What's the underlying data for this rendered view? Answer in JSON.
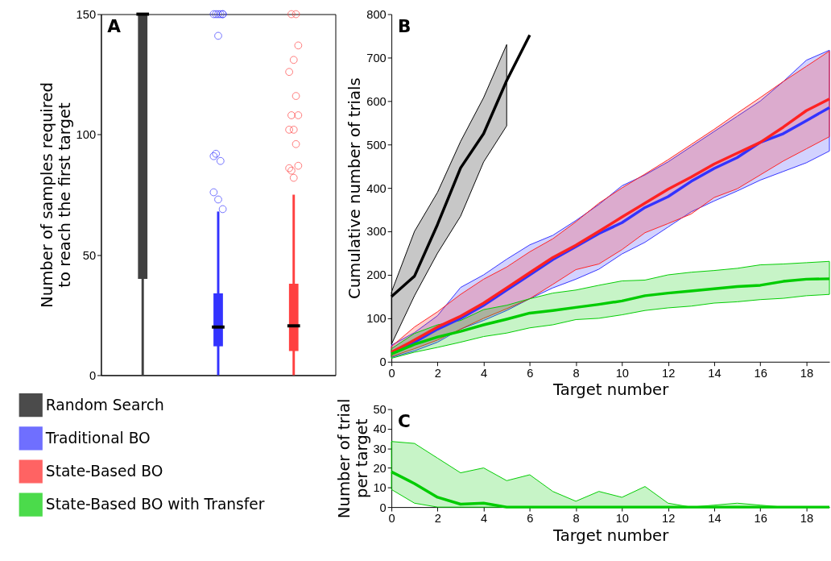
{
  "chart_data": [
    {
      "type": "box",
      "categories": [
        null,
        null,
        null
      ],
      "colors": [
        "#404040",
        "#3333ff",
        "#ff4040"
      ],
      "ylabel": "Number of samples required\nto reach the first target",
      "ylim": [
        0,
        150
      ],
      "yticks": [
        0,
        50,
        100,
        150
      ],
      "annotations": [
        "A"
      ],
      "boxes": [
        {
          "low": 0,
          "q1": 40,
          "median": 150,
          "q3": 150,
          "high": 150
        },
        {
          "low": 0,
          "q1": 12,
          "median": 20,
          "q3": 34,
          "high": 68,
          "outliers": [
            76,
            73,
            69,
            92,
            89,
            91,
            141,
            150,
            150,
            150,
            150,
            150,
            150
          ]
        },
        {
          "low": 0,
          "q1": 10,
          "median": 20.5,
          "q3": 38,
          "high": 75,
          "outliers": [
            86,
            82,
            87,
            85,
            96,
            102,
            102,
            108,
            108,
            116,
            126,
            131,
            137,
            150,
            150
          ]
        }
      ]
    },
    {
      "type": "line",
      "x": [
        0,
        1,
        2,
        3,
        4,
        5,
        6,
        7,
        8,
        9,
        10,
        11,
        12,
        13,
        14,
        15,
        16,
        17,
        18,
        19
      ],
      "xlim": [
        0,
        19
      ],
      "xticks": [
        0,
        2,
        4,
        6,
        8,
        10,
        12,
        14,
        16,
        18
      ],
      "ylim": [
        0,
        800
      ],
      "yticks": [
        0,
        100,
        200,
        300,
        400,
        500,
        600,
        700,
        800
      ],
      "xlabel": "Target number",
      "ylabel": "Cumulative number of trials",
      "legend": "bottom left",
      "annotations": [
        "B"
      ],
      "series": [
        {
          "name": "Random Search",
          "color": "#000000",
          "x": [
            0,
            1,
            2,
            3,
            4,
            5,
            6
          ],
          "values": [
            150,
            197,
            316,
            446,
            525,
            647,
            752
          ],
          "lower": [
            40,
            152,
            250,
            335,
            460,
            543,
            null
          ],
          "upper": [
            160,
            300,
            390,
            507,
            608,
            730,
            null
          ]
        },
        {
          "name": "Traditional BO",
          "color": "#3333ff",
          "values": [
            20,
            45,
            75,
            100,
            130,
            165,
            200,
            235,
            265,
            295,
            320,
            355,
            380,
            415,
            445,
            470,
            505,
            525,
            555,
            585
          ],
          "lower": [
            10,
            25,
            45,
            75,
            95,
            118,
            145,
            170,
            190,
            213,
            248,
            275,
            310,
            345,
            370,
            393,
            418,
            438,
            458,
            485
          ],
          "upper": [
            38,
            67,
            106,
            171,
            200,
            236,
            269,
            291,
            325,
            362,
            405,
            430,
            460,
            495,
            530,
            565,
            600,
            645,
            694,
            717
          ]
        },
        {
          "name": "State-Based BO",
          "color": "#ff2222",
          "values": [
            22,
            50,
            80,
            105,
            135,
            170,
            205,
            240,
            268,
            300,
            333,
            365,
            397,
            425,
            455,
            480,
            505,
            540,
            578,
            605
          ],
          "lower": [
            12,
            30,
            50,
            75,
            100,
            122,
            145,
            178,
            212,
            225,
            258,
            297,
            318,
            340,
            378,
            398,
            430,
            462,
            490,
            518
          ],
          "upper": [
            35,
            80,
            115,
            155,
            190,
            218,
            253,
            283,
            322,
            365,
            400,
            432,
            465,
            500,
            535,
            572,
            608,
            645,
            680,
            715
          ]
        },
        {
          "name": "State-Based BO with Transfer",
          "color": "#00cc00",
          "values": [
            18,
            40,
            57,
            70,
            85,
            98,
            112,
            118,
            125,
            132,
            140,
            152,
            158,
            163,
            168,
            173,
            176,
            185,
            190,
            191
          ],
          "lower": [
            8,
            22,
            33,
            45,
            58,
            66,
            78,
            85,
            97,
            100,
            108,
            118,
            124,
            128,
            135,
            138,
            143,
            146,
            152,
            155
          ],
          "upper": [
            30,
            65,
            85,
            95,
            120,
            130,
            145,
            158,
            165,
            176,
            186,
            188,
            200,
            206,
            210,
            215,
            223,
            225,
            228,
            231
          ]
        }
      ]
    },
    {
      "type": "line",
      "x": [
        0,
        1,
        2,
        3,
        4,
        5,
        6,
        7,
        8,
        9,
        10,
        11,
        12,
        13,
        14,
        15,
        16,
        17,
        18,
        19
      ],
      "xlim": [
        0,
        19
      ],
      "xticks": [
        0,
        2,
        4,
        6,
        8,
        10,
        12,
        14,
        16,
        18
      ],
      "ylim": [
        0,
        50
      ],
      "yticks": [
        0,
        10,
        20,
        30,
        40,
        50
      ],
      "xlabel": "Target number",
      "ylabel": "Number of trial\nper target",
      "annotations": [
        "C"
      ],
      "series": [
        {
          "color": "#00cc00",
          "values": [
            18,
            12,
            5,
            1.5,
            2,
            0,
            0,
            0,
            0,
            0,
            0,
            0,
            0,
            0,
            0,
            0,
            0,
            0,
            0,
            0
          ],
          "lower": [
            9,
            2,
            0,
            0,
            0,
            0,
            0,
            0,
            0,
            0,
            0,
            0,
            0,
            0,
            0,
            0,
            0,
            0,
            0,
            0
          ],
          "upper": [
            33.5,
            32.5,
            25,
            17.5,
            20,
            13.5,
            16.5,
            8,
            3,
            8,
            5,
            10.5,
            2,
            0,
            1,
            2,
            1,
            0,
            0,
            0
          ]
        }
      ]
    }
  ]
}
